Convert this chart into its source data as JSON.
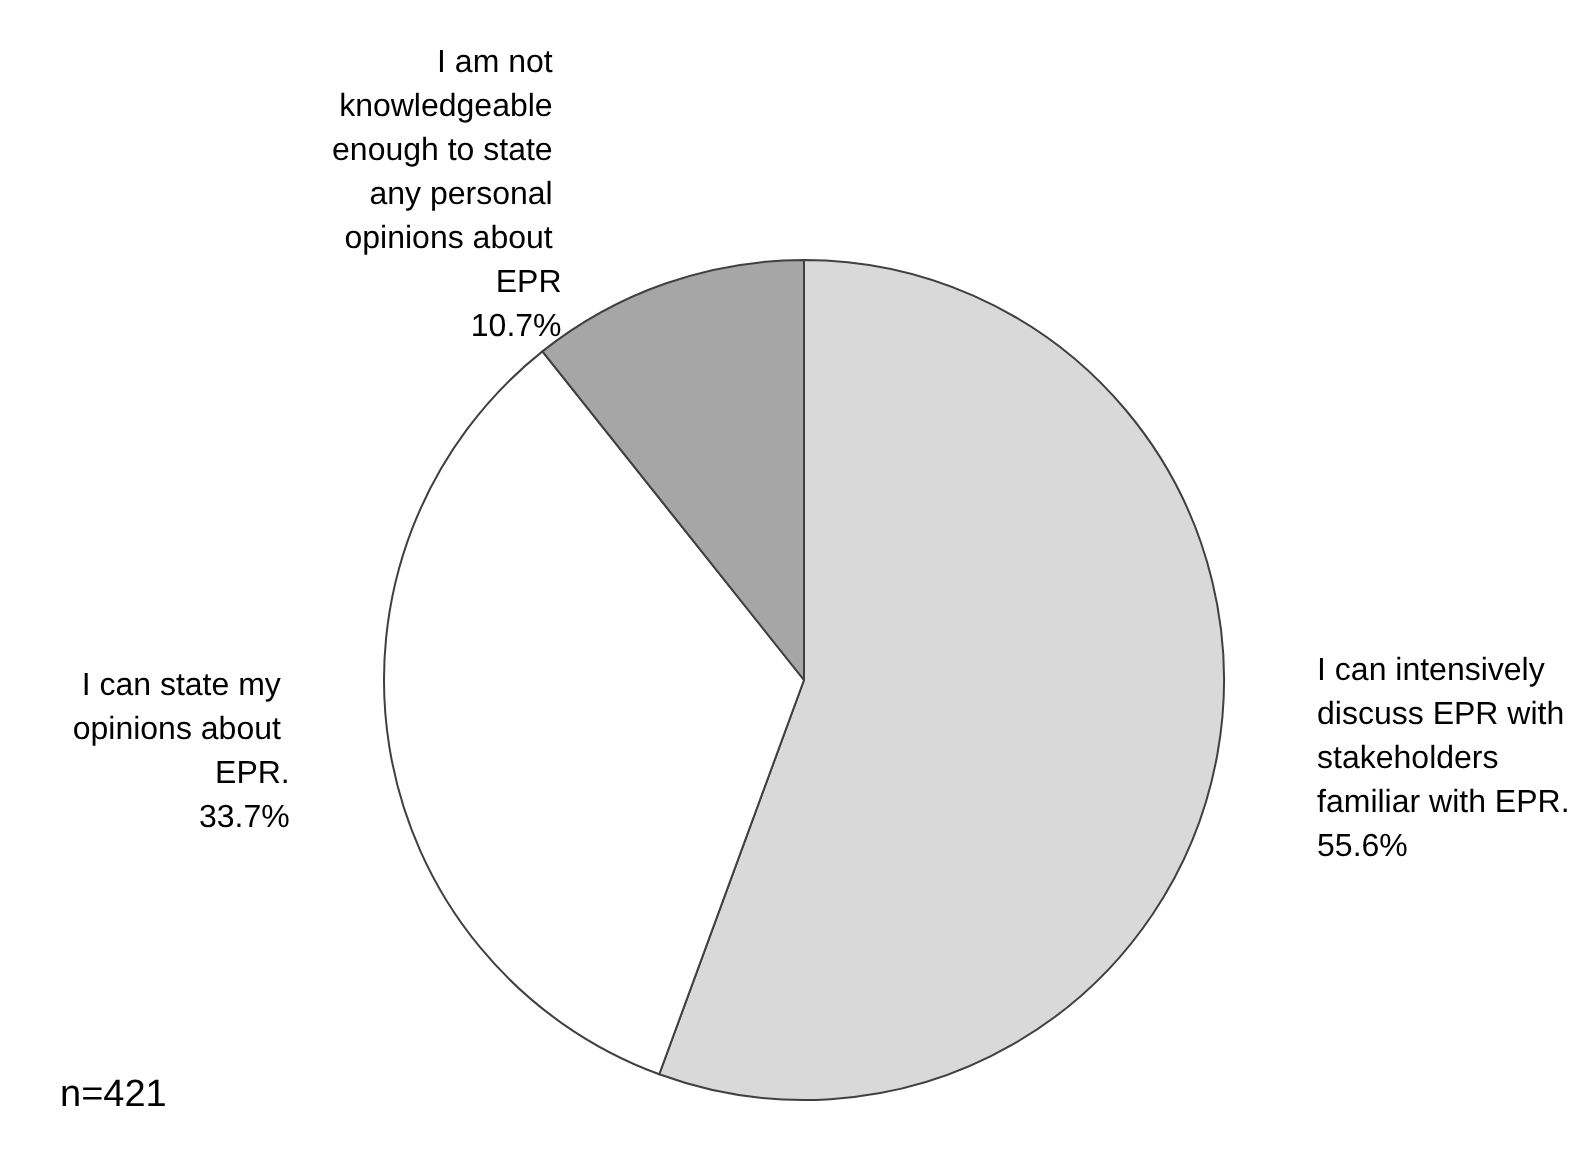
{
  "chart_data": {
    "type": "pie",
    "categories": [
      "I can intensively discuss EPR with stakeholders familiar with EPR.",
      "I can state my opinions about EPR.",
      "I am not knowledgeable enough to state any personal opinions about EPR"
    ],
    "values": [
      55.6,
      33.7,
      10.7
    ],
    "colors": [
      "#d9d9d9",
      "#ffffff",
      "#a6a6a6"
    ],
    "value_labels": [
      "55.6%",
      "33.7%",
      "10.7%"
    ],
    "legend": false,
    "annotations": [
      "n=421"
    ]
  }
}
